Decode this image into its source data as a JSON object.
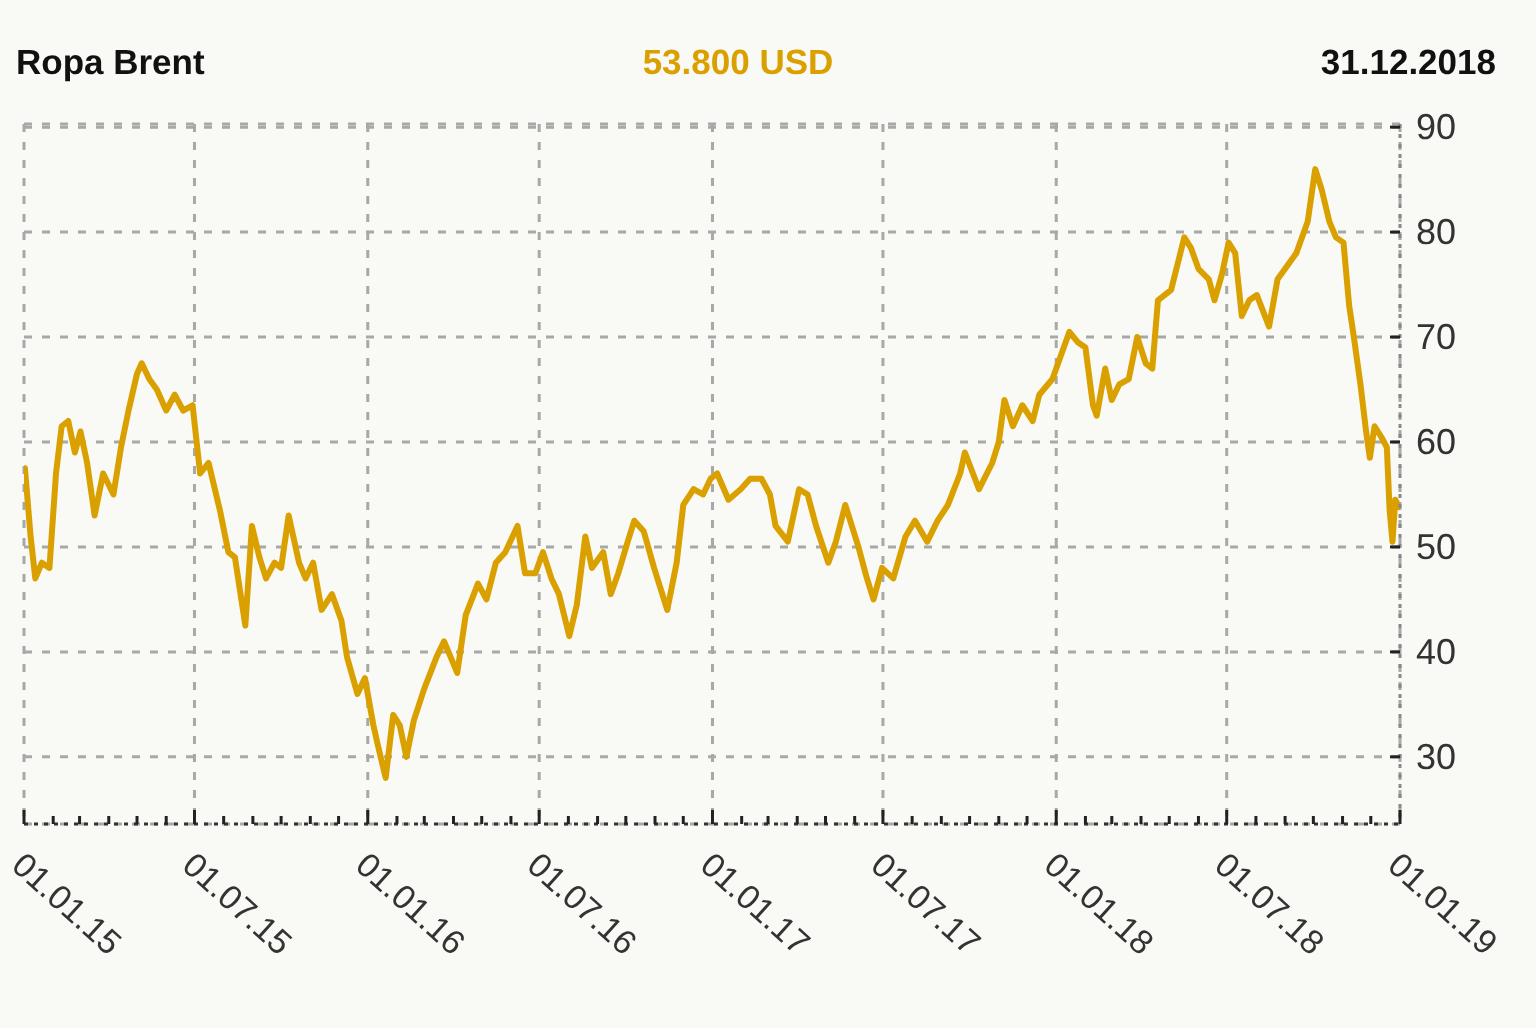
{
  "chart_data": {
    "type": "line",
    "title": "Ropa Brent",
    "subtitle": "53.800 USD",
    "annotations": [
      "31.12.2018"
    ],
    "x": [
      "2015-01-02",
      "2015-01-08",
      "2015-01-13",
      "2015-01-20",
      "2015-01-28",
      "2015-02-04",
      "2015-02-10",
      "2015-02-17",
      "2015-02-24",
      "2015-03-02",
      "2015-03-09",
      "2015-03-17",
      "2015-03-26",
      "2015-04-06",
      "2015-04-14",
      "2015-04-22",
      "2015-05-01",
      "2015-05-06",
      "2015-05-14",
      "2015-05-22",
      "2015-06-01",
      "2015-06-10",
      "2015-06-19",
      "2015-06-29",
      "2015-07-07",
      "2015-07-16",
      "2015-07-28",
      "2015-08-06",
      "2015-08-13",
      "2015-08-24",
      "2015-08-31",
      "2015-09-08",
      "2015-09-15",
      "2015-09-24",
      "2015-10-01",
      "2015-10-09",
      "2015-10-20",
      "2015-10-27",
      "2015-11-04",
      "2015-11-13",
      "2015-11-24",
      "2015-12-04",
      "2015-12-10",
      "2015-12-21",
      "2015-12-29",
      "2016-01-07",
      "2016-01-12",
      "2016-01-20",
      "2016-01-28",
      "2016-02-04",
      "2016-02-11",
      "2016-02-19",
      "2016-03-01",
      "2016-03-14",
      "2016-03-22",
      "2016-04-05",
      "2016-04-14",
      "2016-04-27",
      "2016-05-06",
      "2016-05-16",
      "2016-05-26",
      "2016-06-08",
      "2016-06-16",
      "2016-06-27",
      "2016-07-05",
      "2016-07-14",
      "2016-07-22",
      "2016-08-02",
      "2016-08-10",
      "2016-08-19",
      "2016-08-26",
      "2016-09-07",
      "2016-09-15",
      "2016-09-23",
      "2016-10-03",
      "2016-10-10",
      "2016-10-20",
      "2016-10-31",
      "2016-11-14",
      "2016-11-24",
      "2016-12-01",
      "2016-12-12",
      "2016-12-22",
      "2016-12-30",
      "2017-01-06",
      "2017-01-18",
      "2017-01-31",
      "2017-02-10",
      "2017-02-22",
      "2017-03-03",
      "2017-03-09",
      "2017-03-22",
      "2017-04-03",
      "2017-04-12",
      "2017-04-21",
      "2017-05-04",
      "2017-05-12",
      "2017-05-22",
      "2017-06-05",
      "2017-06-14",
      "2017-06-21",
      "2017-06-30",
      "2017-07-12",
      "2017-07-25",
      "2017-08-04",
      "2017-08-17",
      "2017-08-28",
      "2017-09-08",
      "2017-09-21",
      "2017-09-26",
      "2017-10-11",
      "2017-10-25",
      "2017-11-01",
      "2017-11-07",
      "2017-11-16",
      "2017-11-26",
      "2017-12-07",
      "2017-12-14",
      "2017-12-28",
      "2018-01-05",
      "2018-01-15",
      "2018-01-24",
      "2018-02-01",
      "2018-02-09",
      "2018-02-13",
      "2018-02-22",
      "2018-03-01",
      "2018-03-09",
      "2018-03-19",
      "2018-03-28",
      "2018-04-06",
      "2018-04-13",
      "2018-04-19",
      "2018-05-03",
      "2018-05-17",
      "2018-05-24",
      "2018-06-01",
      "2018-06-12",
      "2018-06-18",
      "2018-06-26",
      "2018-07-03",
      "2018-07-10",
      "2018-07-17",
      "2018-07-25",
      "2018-08-02",
      "2018-08-15",
      "2018-08-24",
      "2018-09-05",
      "2018-09-13",
      "2018-09-25",
      "2018-10-03",
      "2018-10-10",
      "2018-10-18",
      "2018-10-25",
      "2018-11-02",
      "2018-11-08",
      "2018-11-13",
      "2018-11-20",
      "2018-11-26",
      "2018-11-30",
      "2018-12-05",
      "2018-12-12",
      "2018-12-18",
      "2018-12-21",
      "2018-12-24",
      "2018-12-27",
      "2018-12-31"
    ],
    "series": [
      {
        "color": "#d9a000",
        "values": [
          57.5,
          51,
          47,
          48.5,
          48,
          57,
          61.5,
          62,
          59,
          61,
          58,
          53,
          57,
          55,
          59.5,
          63,
          66.5,
          67.5,
          66,
          65,
          63,
          64.5,
          63,
          63.5,
          57,
          58,
          53.5,
          49.5,
          49,
          42.5,
          52,
          49,
          47,
          48.5,
          48,
          53,
          48.5,
          47,
          48.5,
          44,
          45.5,
          43,
          39.5,
          36,
          37.5,
          33,
          31,
          28,
          34,
          33,
          30,
          33.5,
          36.5,
          39.5,
          41,
          38,
          43.5,
          46.5,
          45,
          48.5,
          49.5,
          52,
          47.5,
          47.5,
          49.5,
          47,
          45.5,
          41.5,
          44.5,
          51,
          48,
          49.5,
          45.5,
          47.5,
          50.5,
          52.5,
          51.5,
          48,
          44,
          48.5,
          54,
          55.5,
          55,
          56.5,
          57,
          54.5,
          55.5,
          56.5,
          56.5,
          55,
          52,
          50.5,
          55.5,
          55,
          52,
          48.5,
          50.5,
          54,
          50,
          47,
          45,
          48,
          47,
          51,
          52.5,
          50.5,
          52.5,
          54,
          57,
          59,
          55.5,
          58,
          60,
          64,
          61.5,
          63.5,
          62,
          64.5,
          66,
          68,
          70.5,
          69.5,
          69,
          63.5,
          62.5,
          67,
          64,
          65.5,
          66,
          70,
          67.5,
          67,
          73.5,
          74.5,
          79.5,
          78.5,
          76.5,
          75.5,
          73.5,
          76,
          79,
          78,
          72,
          73.5,
          74,
          71,
          75.5,
          77,
          78,
          81,
          86,
          84,
          81,
          79.5,
          79,
          73,
          70,
          65.5,
          61,
          58.5,
          61.5,
          60.5,
          59.5,
          53.5,
          50.5,
          54.5,
          53.8
        ]
      }
    ],
    "xlim": [
      "2015-01-01",
      "2019-01-01"
    ],
    "xticks": [
      {
        "value": "2015-01-01",
        "label": "01.01.15"
      },
      {
        "value": "2015-02-01",
        "label": null
      },
      {
        "value": "2015-03-01",
        "label": null
      },
      {
        "value": "2015-04-01",
        "label": null
      },
      {
        "value": "2015-05-01",
        "label": null
      },
      {
        "value": "2015-06-01",
        "label": null
      },
      {
        "value": "2015-07-01",
        "label": "01.07.15"
      },
      {
        "value": "2015-08-01",
        "label": null
      },
      {
        "value": "2015-09-01",
        "label": null
      },
      {
        "value": "2015-10-01",
        "label": null
      },
      {
        "value": "2015-11-01",
        "label": null
      },
      {
        "value": "2015-12-01",
        "label": null
      },
      {
        "value": "2016-01-01",
        "label": "01.01.16"
      },
      {
        "value": "2016-02-01",
        "label": null
      },
      {
        "value": "2016-03-01",
        "label": null
      },
      {
        "value": "2016-04-01",
        "label": null
      },
      {
        "value": "2016-05-01",
        "label": null
      },
      {
        "value": "2016-06-01",
        "label": null
      },
      {
        "value": "2016-07-01",
        "label": "01.07.16"
      },
      {
        "value": "2016-08-01",
        "label": null
      },
      {
        "value": "2016-09-01",
        "label": null
      },
      {
        "value": "2016-10-01",
        "label": null
      },
      {
        "value": "2016-11-01",
        "label": null
      },
      {
        "value": "2016-12-01",
        "label": null
      },
      {
        "value": "2017-01-01",
        "label": "01.01.17"
      },
      {
        "value": "2017-02-01",
        "label": null
      },
      {
        "value": "2017-03-01",
        "label": null
      },
      {
        "value": "2017-04-01",
        "label": null
      },
      {
        "value": "2017-05-01",
        "label": null
      },
      {
        "value": "2017-06-01",
        "label": null
      },
      {
        "value": "2017-07-01",
        "label": "01.07.17"
      },
      {
        "value": "2017-08-01",
        "label": null
      },
      {
        "value": "2017-09-01",
        "label": null
      },
      {
        "value": "2017-10-01",
        "label": null
      },
      {
        "value": "2017-11-01",
        "label": null
      },
      {
        "value": "2017-12-01",
        "label": null
      },
      {
        "value": "2018-01-01",
        "label": "01.01.18"
      },
      {
        "value": "2018-02-01",
        "label": null
      },
      {
        "value": "2018-03-01",
        "label": null
      },
      {
        "value": "2018-04-01",
        "label": null
      },
      {
        "value": "2018-05-01",
        "label": null
      },
      {
        "value": "2018-06-01",
        "label": null
      },
      {
        "value": "2018-07-01",
        "label": "01.07.18"
      },
      {
        "value": "2018-08-01",
        "label": null
      },
      {
        "value": "2018-09-01",
        "label": null
      },
      {
        "value": "2018-10-01",
        "label": null
      },
      {
        "value": "2018-11-01",
        "label": null
      },
      {
        "value": "2018-12-01",
        "label": null
      },
      {
        "value": "2019-01-01",
        "label": "01.01.19"
      }
    ],
    "ylim": [
      23.6,
      90.3
    ],
    "yticks": [
      30,
      40,
      50,
      60,
      70,
      80,
      90
    ],
    "grid": true,
    "marker": "none"
  }
}
